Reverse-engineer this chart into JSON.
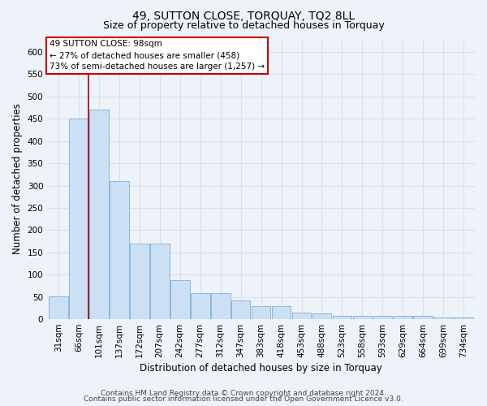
{
  "title": "49, SUTTON CLOSE, TORQUAY, TQ2 8LL",
  "subtitle": "Size of property relative to detached houses in Torquay",
  "xlabel": "Distribution of detached houses by size in Torquay",
  "ylabel": "Number of detached properties",
  "categories": [
    "31sqm",
    "66sqm",
    "101sqm",
    "137sqm",
    "172sqm",
    "207sqm",
    "242sqm",
    "277sqm",
    "312sqm",
    "347sqm",
    "383sqm",
    "418sqm",
    "453sqm",
    "488sqm",
    "523sqm",
    "558sqm",
    "593sqm",
    "629sqm",
    "664sqm",
    "699sqm",
    "734sqm"
  ],
  "values": [
    52,
    450,
    470,
    310,
    170,
    170,
    88,
    58,
    58,
    42,
    30,
    30,
    14,
    12,
    8,
    8,
    8,
    7,
    7,
    4,
    4
  ],
  "bar_color": "#cce0f5",
  "bar_edge_color": "#7aafd6",
  "red_line_x": 1.5,
  "marker_color": "#aa0000",
  "annotation_text": "49 SUTTON CLOSE: 98sqm\n← 27% of detached houses are smaller (458)\n73% of semi-detached houses are larger (1,257) →",
  "annotation_box_color": "#ffffff",
  "annotation_box_edge": "#cc0000",
  "footer_line1": "Contains HM Land Registry data © Crown copyright and database right 2024.",
  "footer_line2": "Contains public sector information licensed under the Open Government Licence v3.0.",
  "ylim": [
    0,
    630
  ],
  "yticks": [
    0,
    50,
    100,
    150,
    200,
    250,
    300,
    350,
    400,
    450,
    500,
    550,
    600
  ],
  "bg_color": "#eef2f9",
  "grid_color": "#d8e0ee",
  "title_fontsize": 10,
  "subtitle_fontsize": 9,
  "axis_label_fontsize": 8.5,
  "tick_fontsize": 7.5,
  "annotation_fontsize": 7.5,
  "footer_fontsize": 6.5
}
